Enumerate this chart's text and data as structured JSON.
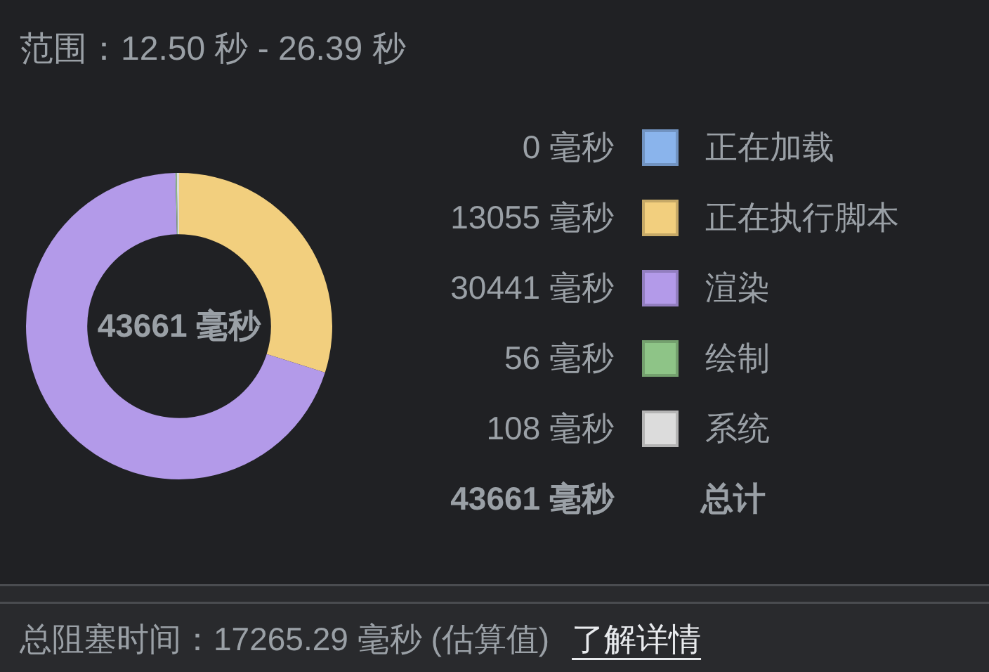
{
  "chart_data": {
    "type": "donut",
    "title": "范围：12.50 秒 - 26.39 秒",
    "categories": [
      "正在加载",
      "正在执行脚本",
      "渲染",
      "绘制",
      "系统"
    ],
    "values": [
      0,
      13055,
      30441,
      56,
      108
    ],
    "colors": [
      "#8ab4ec",
      "#f2cf7e",
      "#b39ae9",
      "#8ec487",
      "#dcdcdc"
    ],
    "value_labels": [
      "0 毫秒",
      "13055 毫秒",
      "30441 毫秒",
      "56 毫秒",
      "108 毫秒"
    ],
    "legend": "right",
    "annotations": [
      "43661 毫秒",
      "43661 毫秒",
      "总计",
      "总阻塞时间：17265.29 毫秒 (估算值)",
      "了解详情"
    ]
  }
}
